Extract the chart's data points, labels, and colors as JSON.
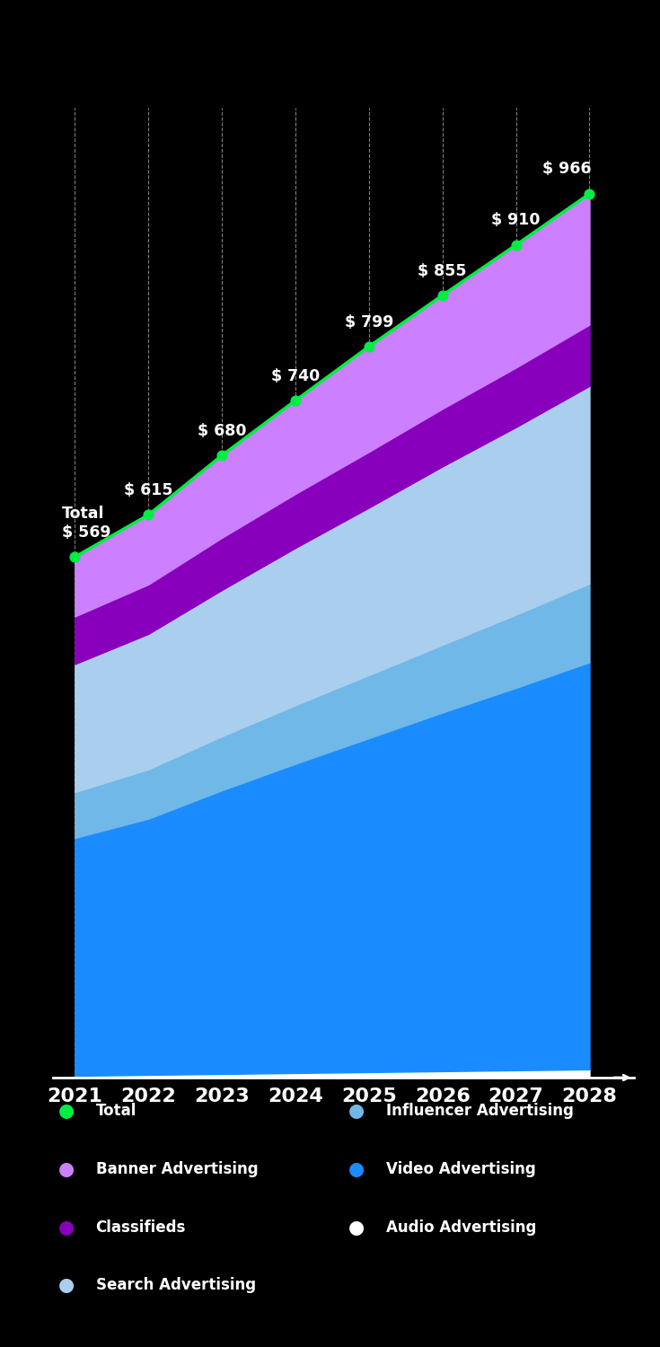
{
  "years": [
    2021,
    2022,
    2023,
    2024,
    2025,
    2026,
    2027,
    2028
  ],
  "total": [
    569,
    615,
    680,
    740,
    799,
    855,
    910,
    966
  ],
  "total_labels": [
    "Total\n$ 569",
    "$ 615",
    "$ 680",
    "$ 740",
    "$ 799",
    "$ 855",
    "$ 910",
    "$ 966"
  ],
  "layers": {
    "audio": [
      2,
      3,
      4,
      5,
      6,
      7,
      8,
      9
    ],
    "video": [
      260,
      280,
      310,
      338,
      365,
      392,
      418,
      445
    ],
    "influencer": [
      50,
      54,
      59,
      64,
      69,
      74,
      80,
      86
    ],
    "search": [
      140,
      148,
      160,
      172,
      183,
      195,
      205,
      216
    ],
    "classifieds": [
      52,
      54,
      57,
      59,
      61,
      63,
      65,
      67
    ],
    "banner": [
      65,
      76,
      90,
      102,
      115,
      124,
      134,
      143
    ]
  },
  "colors": {
    "audio": "#ffffff",
    "video": "#1a8cff",
    "influencer": "#70b8e8",
    "search": "#aacfee",
    "classifieds": "#8800bb",
    "banner": "#cc80ff",
    "total_line": "#00ee44",
    "background": "#000000",
    "text": "#ffffff",
    "grid": "#ffffff"
  },
  "legend_left": [
    {
      "label": "Total",
      "color": "#00ee44"
    },
    {
      "label": "Banner Advertising",
      "color": "#cc80ff"
    },
    {
      "label": "Classifieds",
      "color": "#8800bb"
    },
    {
      "label": "Search Advertising",
      "color": "#aacfee"
    }
  ],
  "legend_right": [
    {
      "label": "Influencer Advertising",
      "color": "#70b8e8"
    },
    {
      "label": "Video Advertising",
      "color": "#1a8cff"
    },
    {
      "label": "Audio Advertising",
      "color": "#ffffff"
    }
  ]
}
